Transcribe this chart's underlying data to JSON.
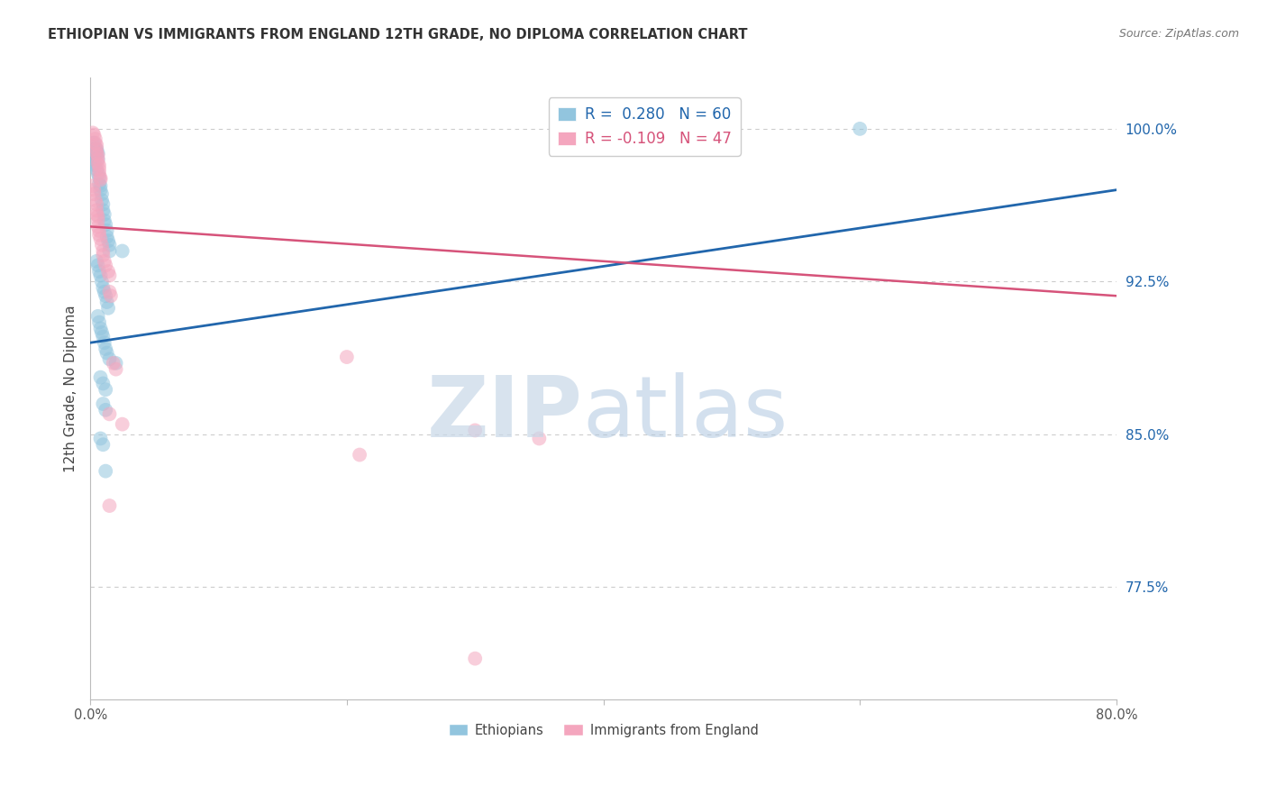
{
  "title": "ETHIOPIAN VS IMMIGRANTS FROM ENGLAND 12TH GRADE, NO DIPLOMA CORRELATION CHART",
  "source": "Source: ZipAtlas.com",
  "ylabel": "12th Grade, No Diploma",
  "R_blue": 0.28,
  "N_blue": 60,
  "R_pink": -0.109,
  "N_pink": 47,
  "blue_color": "#92c5de",
  "pink_color": "#f4a6be",
  "blue_line_color": "#2166ac",
  "pink_line_color": "#d6537a",
  "x_min": 0.0,
  "x_max": 0.8,
  "y_min": 0.72,
  "y_max": 1.025,
  "yticks": [
    1.0,
    0.925,
    0.85,
    0.775
  ],
  "ytick_labels": [
    "100.0%",
    "92.5%",
    "85.0%",
    "77.5%"
  ],
  "xticks": [
    0.0,
    0.2,
    0.4,
    0.6,
    0.8
  ],
  "xtick_labels": [
    "0.0%",
    "",
    "",
    "",
    "80.0%"
  ],
  "blue_line_x": [
    0.0,
    0.8
  ],
  "blue_line_y": [
    0.895,
    0.97
  ],
  "pink_line_x": [
    0.0,
    0.8
  ],
  "pink_line_y": [
    0.952,
    0.918
  ],
  "blue_scatter": [
    [
      0.002,
      0.993
    ],
    [
      0.003,
      0.993
    ],
    [
      0.003,
      0.99
    ],
    [
      0.004,
      0.99
    ],
    [
      0.004,
      0.988
    ],
    [
      0.005,
      0.99
    ],
    [
      0.005,
      0.988
    ],
    [
      0.006,
      0.988
    ],
    [
      0.006,
      0.985
    ],
    [
      0.002,
      0.985
    ],
    [
      0.003,
      0.983
    ],
    [
      0.004,
      0.982
    ],
    [
      0.005,
      0.98
    ],
    [
      0.006,
      0.978
    ],
    [
      0.007,
      0.976
    ],
    [
      0.007,
      0.973
    ],
    [
      0.008,
      0.972
    ],
    [
      0.008,
      0.97
    ],
    [
      0.009,
      0.968
    ],
    [
      0.009,
      0.965
    ],
    [
      0.01,
      0.963
    ],
    [
      0.01,
      0.96
    ],
    [
      0.011,
      0.958
    ],
    [
      0.011,
      0.955
    ],
    [
      0.012,
      0.953
    ],
    [
      0.013,
      0.95
    ],
    [
      0.013,
      0.947
    ],
    [
      0.014,
      0.945
    ],
    [
      0.015,
      0.943
    ],
    [
      0.015,
      0.94
    ],
    [
      0.005,
      0.935
    ],
    [
      0.006,
      0.933
    ],
    [
      0.007,
      0.93
    ],
    [
      0.008,
      0.928
    ],
    [
      0.009,
      0.925
    ],
    [
      0.01,
      0.922
    ],
    [
      0.011,
      0.92
    ],
    [
      0.012,
      0.918
    ],
    [
      0.013,
      0.915
    ],
    [
      0.014,
      0.912
    ],
    [
      0.006,
      0.908
    ],
    [
      0.007,
      0.905
    ],
    [
      0.008,
      0.902
    ],
    [
      0.009,
      0.9
    ],
    [
      0.01,
      0.898
    ],
    [
      0.011,
      0.895
    ],
    [
      0.012,
      0.892
    ],
    [
      0.013,
      0.89
    ],
    [
      0.015,
      0.887
    ],
    [
      0.02,
      0.885
    ],
    [
      0.008,
      0.878
    ],
    [
      0.01,
      0.875
    ],
    [
      0.012,
      0.872
    ],
    [
      0.01,
      0.865
    ],
    [
      0.012,
      0.862
    ],
    [
      0.008,
      0.848
    ],
    [
      0.01,
      0.845
    ],
    [
      0.012,
      0.832
    ],
    [
      0.025,
      0.94
    ],
    [
      0.6,
      1.0
    ]
  ],
  "pink_scatter": [
    [
      0.002,
      0.998
    ],
    [
      0.003,
      0.997
    ],
    [
      0.004,
      0.995
    ],
    [
      0.004,
      0.993
    ],
    [
      0.005,
      0.992
    ],
    [
      0.005,
      0.99
    ],
    [
      0.005,
      0.988
    ],
    [
      0.006,
      0.987
    ],
    [
      0.006,
      0.985
    ],
    [
      0.006,
      0.983
    ],
    [
      0.007,
      0.982
    ],
    [
      0.007,
      0.98
    ],
    [
      0.007,
      0.978
    ],
    [
      0.008,
      0.976
    ],
    [
      0.008,
      0.975
    ],
    [
      0.002,
      0.972
    ],
    [
      0.003,
      0.97
    ],
    [
      0.003,
      0.968
    ],
    [
      0.004,
      0.965
    ],
    [
      0.005,
      0.963
    ],
    [
      0.005,
      0.96
    ],
    [
      0.005,
      0.958
    ],
    [
      0.006,
      0.957
    ],
    [
      0.006,
      0.955
    ],
    [
      0.006,
      0.952
    ],
    [
      0.007,
      0.95
    ],
    [
      0.007,
      0.948
    ],
    [
      0.008,
      0.946
    ],
    [
      0.009,
      0.943
    ],
    [
      0.01,
      0.94
    ],
    [
      0.01,
      0.938
    ],
    [
      0.011,
      0.935
    ],
    [
      0.012,
      0.933
    ],
    [
      0.014,
      0.93
    ],
    [
      0.015,
      0.928
    ],
    [
      0.015,
      0.92
    ],
    [
      0.016,
      0.918
    ],
    [
      0.018,
      0.885
    ],
    [
      0.02,
      0.882
    ],
    [
      0.015,
      0.86
    ],
    [
      0.025,
      0.855
    ],
    [
      0.015,
      0.815
    ],
    [
      0.2,
      0.888
    ],
    [
      0.3,
      0.852
    ],
    [
      0.35,
      0.848
    ],
    [
      0.21,
      0.84
    ],
    [
      0.3,
      0.74
    ]
  ],
  "watermark_zip_color": "#c8d8e8",
  "watermark_atlas_color": "#b0c8e0",
  "grid_color": "#cccccc",
  "background_color": "#ffffff"
}
